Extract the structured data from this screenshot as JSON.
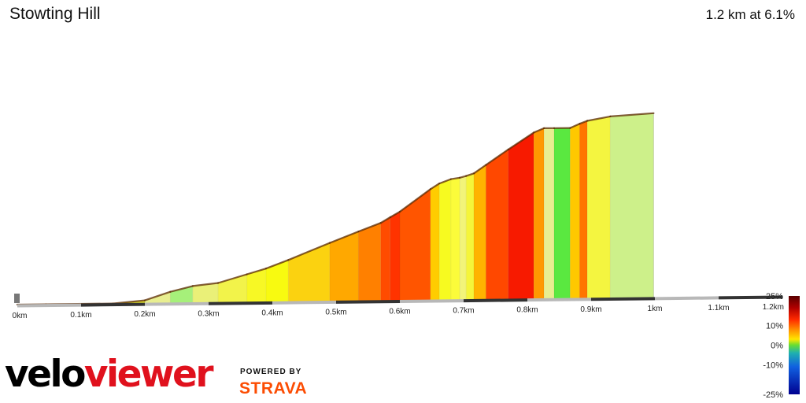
{
  "header": {
    "title": "Stowting Hill",
    "summary": "1.2 km at 6.1%"
  },
  "brand": {
    "velo": "velo",
    "viewer": "viewer",
    "powered_by": "POWERED BY",
    "strava": "STRAVA",
    "strava_color": "#fc4c02",
    "viewer_color": "#e0111d"
  },
  "chart_data": {
    "type": "area",
    "x_ticks": [
      "0km",
      "0.1km",
      "0.2km",
      "0.3km",
      "0.4km",
      "0.5km",
      "0.6km",
      "0.7km",
      "0.8km",
      "0.9km",
      "1km",
      "1.1km",
      "1.2km"
    ],
    "x_tick_values": [
      0,
      0.1,
      0.2,
      0.3,
      0.4,
      0.5,
      0.6,
      0.7,
      0.8,
      0.9,
      1.0,
      1.1,
      1.2
    ],
    "xlim": [
      0,
      1.2
    ],
    "ylim": [
      0,
      75
    ],
    "profile": [
      [
        0,
        0
      ],
      [
        0.045,
        0
      ],
      [
        0.15,
        0
      ],
      [
        0.2,
        1
      ],
      [
        0.24,
        4
      ],
      [
        0.275,
        6
      ],
      [
        0.315,
        7
      ],
      [
        0.36,
        10
      ],
      [
        0.39,
        12
      ],
      [
        0.425,
        15
      ],
      [
        0.49,
        21
      ],
      [
        0.535,
        25
      ],
      [
        0.57,
        28
      ],
      [
        0.585,
        30
      ],
      [
        0.6,
        32
      ],
      [
        0.648,
        40
      ],
      [
        0.662,
        42
      ],
      [
        0.68,
        43.5
      ],
      [
        0.694,
        44
      ],
      [
        0.704,
        44.6
      ],
      [
        0.716,
        45.5
      ],
      [
        0.735,
        48.5
      ],
      [
        0.77,
        54
      ],
      [
        0.81,
        60
      ],
      [
        0.826,
        61.5
      ],
      [
        0.842,
        61.5
      ],
      [
        0.867,
        61.5
      ],
      [
        0.882,
        63
      ],
      [
        0.894,
        64
      ],
      [
        0.93,
        65.5
      ],
      [
        0.998,
        66.5
      ]
    ],
    "segment_colors": [
      "#44e090",
      "#9ee680",
      "#e6e830",
      "#e8ee90",
      "#a6f07a",
      "#eaf078",
      "#f2f34a",
      "#f7f825",
      "#f8fa10",
      "#fbd210",
      "#ffa800",
      "#ff8000",
      "#ff4c00",
      "#ff3300",
      "#ff5500",
      "#ffcc00",
      "#f7fa20",
      "#fbfb3a",
      "#f2f47a",
      "#f5f53a",
      "#ffb300",
      "#ff4800",
      "#f71a00",
      "#ff9800",
      "#e8ee90",
      "#5ae840",
      "#ffc800",
      "#ff7400",
      "#f4f540",
      "#cdf08a"
    ],
    "grade_legend": {
      "labels": [
        "25%",
        "10%",
        "0%",
        "-10%",
        "-25%"
      ],
      "values": [
        25,
        10,
        0,
        -10,
        -25
      ],
      "colors": [
        "#5a0000",
        "#b00000",
        "#ff2a00",
        "#ff8c00",
        "#ffe600",
        "#66dd33",
        "#1fb0b0",
        "#1060e0",
        "#000090"
      ]
    }
  }
}
